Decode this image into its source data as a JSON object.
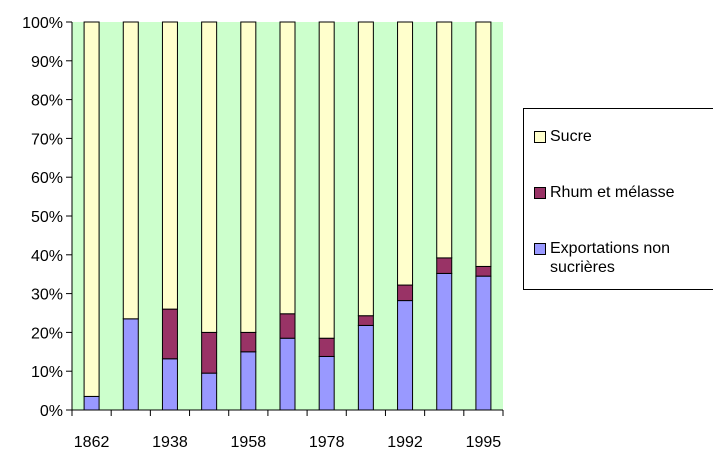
{
  "chart_data": {
    "type": "bar",
    "stacked": true,
    "percent": true,
    "categories": [
      "1862",
      "",
      "1938",
      "",
      "1958",
      "",
      "1978",
      "",
      "1992",
      "",
      "1995"
    ],
    "series": [
      {
        "name": "Exportations non sucrières",
        "color": "#9999ff",
        "values": [
          3.5,
          23.5,
          13.2,
          9.5,
          15.0,
          18.5,
          13.8,
          21.8,
          28.2,
          35.2,
          34.5
        ]
      },
      {
        "name": "Rhum et mélasse",
        "color": "#993366",
        "values": [
          0,
          0,
          12.8,
          10.5,
          5.0,
          6.3,
          4.7,
          2.5,
          4.0,
          4.0,
          2.5
        ]
      },
      {
        "name": "Sucre",
        "color": "#ffffcc",
        "values": [
          96.5,
          76.5,
          74.0,
          80.0,
          80.0,
          75.2,
          81.5,
          75.7,
          67.8,
          60.8,
          63.0
        ]
      }
    ],
    "ylim": [
      0,
      100
    ],
    "yticks": [
      "0%",
      "10%",
      "20%",
      "30%",
      "40%",
      "50%",
      "60%",
      "70%",
      "80%",
      "90%",
      "100%"
    ],
    "plot_background": "#ccffcc",
    "grid": false,
    "legend_position": "right",
    "legend": [
      {
        "line1": "Sucre",
        "line2": "",
        "color": "#ffffcc"
      },
      {
        "line1": "Rhum et mélasse",
        "line2": "",
        "color": "#993366"
      },
      {
        "line1": "Exportations non",
        "line2": "sucrières",
        "color": "#9999ff"
      }
    ]
  }
}
